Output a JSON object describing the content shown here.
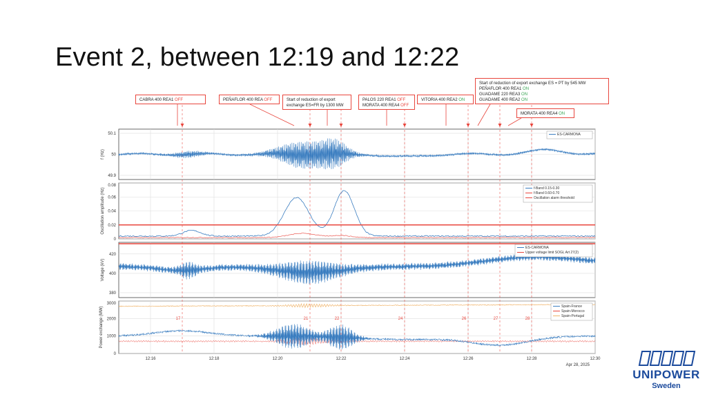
{
  "slide": {
    "title": "Event 2, between 12:19 and 12:22"
  },
  "logo": {
    "word": "UNIPOWER",
    "sub": "Sweden",
    "color": "#1b4a9c"
  },
  "annotations": [
    {
      "lines": [
        {
          "text": "CABRA  400  REA1",
          "status": "OFF"
        }
      ]
    },
    {
      "lines": [
        {
          "text": "PEÑAFLOR  400  REA",
          "status": "OFF"
        }
      ]
    },
    {
      "lines": [
        {
          "text": "Start  of  reduction  of  export",
          "status": ""
        },
        {
          "text": "exchange  ES=FR  by  1300  MW",
          "status": ""
        }
      ]
    },
    {
      "lines": [
        {
          "text": "PALOS  220  REA1",
          "status": "OFF"
        },
        {
          "text": "MORATA  400  REA4",
          "status": "OFF"
        }
      ]
    },
    {
      "lines": [
        {
          "text": "VITORIA  400  REA2",
          "status": "ON"
        }
      ]
    },
    {
      "lines": [
        {
          "text": "Start  of  reduction  of  export  exchange  ES  =  PT  by  545  MW",
          "status": ""
        },
        {
          "text": "PEÑAFLOR  400  REA1",
          "status": "ON"
        },
        {
          "text": "GUADAME  220  REA3",
          "status": "ON"
        },
        {
          "text": "GUADAME  400  REA2",
          "status": "ON"
        }
      ]
    },
    {
      "lines": [
        {
          "text": "MORATA  400  REA4",
          "status": "ON"
        }
      ]
    }
  ],
  "chart_data": {
    "type": "line",
    "x_ticks": [
      "12:16",
      "12:18",
      "12:20",
      "12:22",
      "12:24",
      "12:26",
      "12:28",
      "12:30"
    ],
    "date_label": "Apr 28, 2025",
    "event_times": [
      "12:17",
      "12:21",
      "12:22",
      "12:24",
      "12:26",
      "12:27",
      "12:28"
    ],
    "event_labels": [
      "17",
      "21",
      "22",
      "24",
      "26",
      "27",
      "28"
    ],
    "colors": {
      "blue": "#3a7dc0",
      "red": "#e8453c",
      "orange": "#f0b46a",
      "event": "#e8453c"
    },
    "panels": [
      {
        "ylabel": "f (Hz)",
        "yticks": [
          "50.1",
          "50",
          "49.9"
        ],
        "ylim": [
          49.88,
          50.12
        ],
        "legend": [
          "ES-CARMONA"
        ],
        "series": [
          {
            "name": "ES-CARMONA",
            "baseline": 50.0
          }
        ]
      },
      {
        "ylabel": "Oscillation amplitude (Hz)",
        "yticks": [
          "0.08",
          "0.06",
          "0.04",
          "0.02",
          "0"
        ],
        "ylim": [
          0,
          0.08
        ],
        "legend": [
          "f-Band 0.15-0.30",
          "f-Band 0.60-0.70",
          "Oscillation alarm threshold"
        ],
        "threshold": 0.02,
        "peaks": [
          0.055,
          0.065
        ]
      },
      {
        "ylabel": "Voltage (kV)",
        "yticks": [
          "420",
          "400",
          "380"
        ],
        "ylim": [
          375,
          432
        ],
        "legend": [
          "ES-CARMONA",
          "Upper voltage limit SOGL Art 27(2)"
        ],
        "upper_limit": 435,
        "series": [
          {
            "name": "ES-CARMONA",
            "start": 407,
            "end": 415
          }
        ]
      },
      {
        "ylabel": "Power exchange (MW)",
        "yticks": [
          "3000",
          "2000",
          "1000",
          "0"
        ],
        "ylim": [
          0,
          3000
        ],
        "legend": [
          "Spain-France",
          "Spain-Morocco",
          "Spain-Portugal"
        ],
        "series": [
          {
            "name": "Spain-France",
            "start": 1000,
            "end": 800
          },
          {
            "name": "Spain-Morocco",
            "level": 700
          },
          {
            "name": "Spain-Portugal",
            "start": 2700,
            "end": 2800
          }
        ]
      }
    ]
  }
}
